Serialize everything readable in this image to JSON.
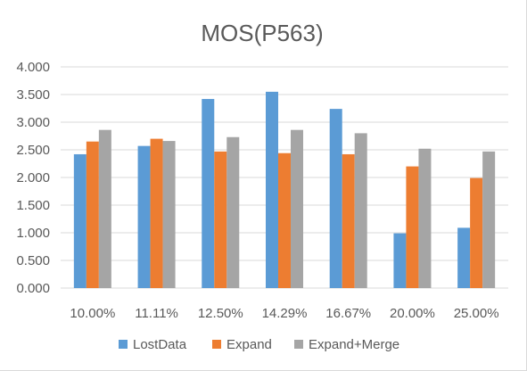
{
  "chart_data": {
    "type": "bar",
    "title": "MOS(P563)",
    "categories": [
      "10.00%",
      "11.11%",
      "12.50%",
      "14.29%",
      "16.67%",
      "20.00%",
      "25.00%"
    ],
    "series": [
      {
        "name": "LostData",
        "color": "#5b9bd5",
        "values": [
          2.42,
          2.57,
          3.42,
          3.55,
          3.24,
          0.99,
          1.09
        ]
      },
      {
        "name": "Expand",
        "color": "#ed7d31",
        "values": [
          2.65,
          2.7,
          2.47,
          2.44,
          2.42,
          2.2,
          1.99
        ]
      },
      {
        "name": "Expand+Merge",
        "color": "#a5a5a5",
        "values": [
          2.86,
          2.66,
          2.73,
          2.86,
          2.8,
          2.52,
          2.47
        ]
      }
    ],
    "yticks": [
      "0.000",
      "0.500",
      "1.000",
      "1.500",
      "2.000",
      "2.500",
      "3.000",
      "3.500",
      "4.000"
    ],
    "ylim": [
      0,
      4
    ],
    "grid": true,
    "legend_position": "bottom",
    "gridline_color": "#d9d9d9"
  }
}
